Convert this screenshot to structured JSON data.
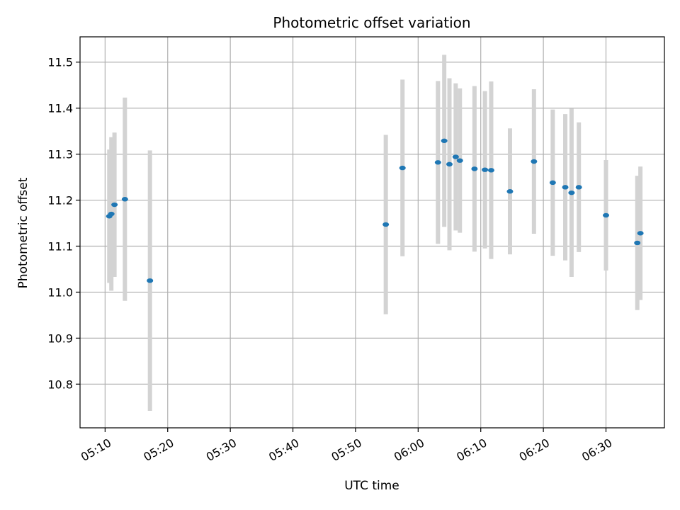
{
  "chart_data": {
    "type": "scatter",
    "title": "Photometric offset variation",
    "xlabel": "UTC time",
    "ylabel": "Photometric offset",
    "xlim": [
      "05:06:00",
      "06:39:20"
    ],
    "ylim": [
      10.705,
      11.555
    ],
    "x_ticks": [
      "05:10",
      "05:20",
      "05:30",
      "05:40",
      "05:50",
      "06:00",
      "06:10",
      "06:20",
      "06:30"
    ],
    "y_ticks": [
      "10.8",
      "10.9",
      "11.0",
      "11.1",
      "11.2",
      "11.3",
      "11.4",
      "11.5"
    ],
    "grid": true,
    "legend": "none",
    "point_color": "#1f77b4",
    "errorbar_color": "#d3d3d3",
    "points": [
      {
        "x": "05:10:40",
        "y": 11.165,
        "err": 0.145
      },
      {
        "x": "05:11:00",
        "y": 11.17,
        "err": 0.167
      },
      {
        "x": "05:11:30",
        "y": 11.19,
        "err": 0.157
      },
      {
        "x": "05:13:10",
        "y": 11.202,
        "err": 0.221
      },
      {
        "x": "05:17:10",
        "y": 11.025,
        "err": 0.283
      },
      {
        "x": "05:54:50",
        "y": 11.147,
        "err": 0.195
      },
      {
        "x": "05:57:30",
        "y": 11.27,
        "err": 0.192
      },
      {
        "x": "06:03:10",
        "y": 11.282,
        "err": 0.177
      },
      {
        "x": "06:04:10",
        "y": 11.329,
        "err": 0.187
      },
      {
        "x": "06:04:60",
        "y": 11.278,
        "err": 0.187
      },
      {
        "x": "06:06:00",
        "y": 11.294,
        "err": 0.16
      },
      {
        "x": "06:06:40",
        "y": 11.286,
        "err": 0.157
      },
      {
        "x": "06:09:00",
        "y": 11.268,
        "err": 0.18
      },
      {
        "x": "06:10:40",
        "y": 11.266,
        "err": 0.171
      },
      {
        "x": "06:11:40",
        "y": 11.265,
        "err": 0.193
      },
      {
        "x": "06:14:40",
        "y": 11.219,
        "err": 0.137
      },
      {
        "x": "06:18:30",
        "y": 11.284,
        "err": 0.157
      },
      {
        "x": "06:21:30",
        "y": 11.238,
        "err": 0.159
      },
      {
        "x": "06:23:30",
        "y": 11.228,
        "err": 0.159
      },
      {
        "x": "06:24:30",
        "y": 11.216,
        "err": 0.183
      },
      {
        "x": "06:25:40",
        "y": 11.228,
        "err": 0.141
      },
      {
        "x": "06:29:60",
        "y": 11.167,
        "err": 0.12
      },
      {
        "x": "06:34:60",
        "y": 11.107,
        "err": 0.146
      },
      {
        "x": "06:35:30",
        "y": 11.128,
        "err": 0.145
      }
    ]
  }
}
